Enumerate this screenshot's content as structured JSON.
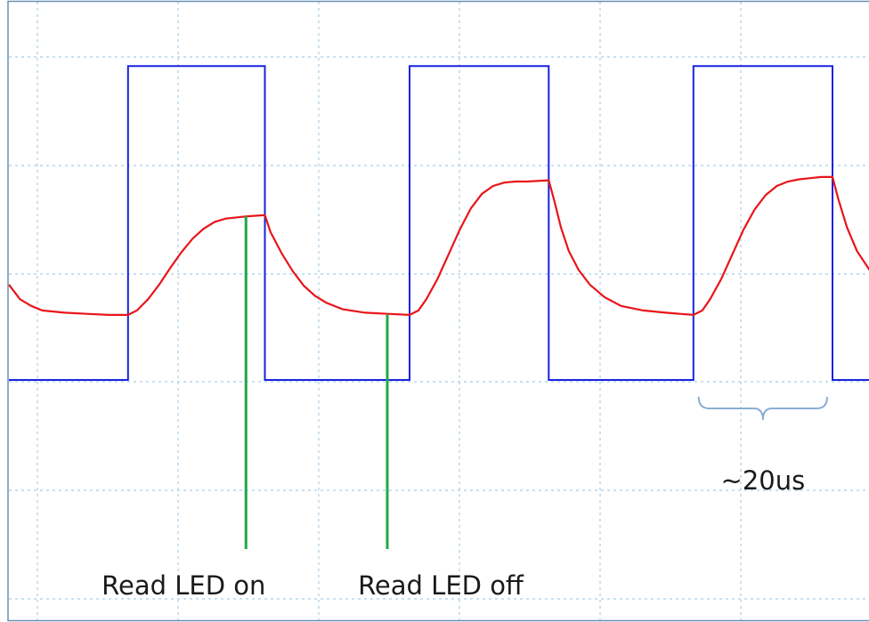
{
  "chart_data": {
    "type": "line",
    "title": "",
    "xlabel": "",
    "ylabel": "",
    "grid": true,
    "grid_style": "dotted",
    "colors": {
      "grid": "#a9cde6",
      "frame": "#6a8fb4",
      "square": "#1a22e0",
      "response": "#e8151a",
      "markers": "#1fa84a",
      "bracket": "#8aaed4"
    },
    "series": [
      {
        "color": "#1a22e0",
        "x": [
          0,
          10.7,
          10.7,
          23.0,
          23.0,
          36.0,
          36.0,
          48.5,
          48.5,
          61.5,
          61.5,
          74.0,
          74.0,
          78.0
        ],
        "y": [
          0.0,
          0.0,
          2.8,
          2.8,
          0.0,
          0.0,
          2.8,
          2.8,
          0.0,
          0.0,
          2.8,
          2.8,
          0.0,
          0.0
        ]
      },
      {
        "color": "#e8151a",
        "x": [
          0,
          1,
          2,
          3,
          5,
          7,
          9,
          10.7,
          11.5,
          12.5,
          13.5,
          14.5,
          15.5,
          16.5,
          17.5,
          18.5,
          19.5,
          20.5,
          21.5,
          23.0,
          23.5,
          24.5,
          25.5,
          26.5,
          27.5,
          28.5,
          30,
          32,
          34,
          36.0,
          36.8,
          37.5,
          38.5,
          39.5,
          40.5,
          41.5,
          42.5,
          43.5,
          44.5,
          45.5,
          46.5,
          48.5,
          49.0,
          49.6,
          50.3,
          51.2,
          52.2,
          53.5,
          55,
          57,
          59,
          61.5,
          62.3,
          63.0,
          64.0,
          65.0,
          66.0,
          67.0,
          68.0,
          69.0,
          70.0,
          71.0,
          72.0,
          73.0,
          74.0,
          74.5,
          75.3,
          76.2,
          77.2,
          78.0
        ],
        "y": [
          0.85,
          0.72,
          0.66,
          0.62,
          0.6,
          0.59,
          0.58,
          0.58,
          0.62,
          0.72,
          0.85,
          1.0,
          1.14,
          1.26,
          1.35,
          1.41,
          1.44,
          1.45,
          1.46,
          1.47,
          1.32,
          1.13,
          0.97,
          0.84,
          0.75,
          0.69,
          0.63,
          0.6,
          0.59,
          0.58,
          0.62,
          0.72,
          0.9,
          1.12,
          1.34,
          1.53,
          1.66,
          1.73,
          1.76,
          1.77,
          1.77,
          1.78,
          1.6,
          1.36,
          1.15,
          0.98,
          0.85,
          0.74,
          0.66,
          0.62,
          0.6,
          0.58,
          0.62,
          0.72,
          0.9,
          1.12,
          1.34,
          1.52,
          1.65,
          1.73,
          1.77,
          1.79,
          1.8,
          1.81,
          1.81,
          1.62,
          1.36,
          1.15,
          1.0,
          0.88
        ]
      }
    ],
    "annotations": [
      {
        "type": "marker",
        "x": 21.3,
        "y_top": 1.46,
        "label": "Read LED on"
      },
      {
        "type": "marker",
        "x": 34.0,
        "y_top": 0.58,
        "label": "Read LED off"
      },
      {
        "type": "bracket",
        "x_start": 61.5,
        "x_end": 74.0,
        "label": "~20us"
      }
    ]
  }
}
